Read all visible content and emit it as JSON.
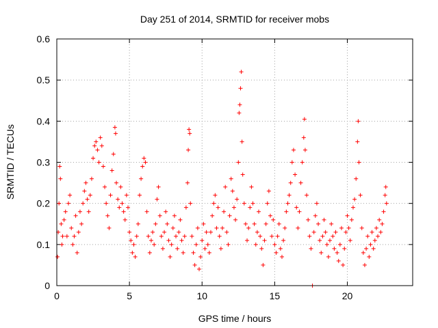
{
  "chart_data": {
    "type": "scatter",
    "title": "Day 251 of 2014, SRMTID for receiver mobs",
    "xlabel": "GPS time / hours",
    "ylabel": "SRMTID / TECUs",
    "xlim": [
      0,
      24.5
    ],
    "ylim": [
      0,
      0.6
    ],
    "xticks": [
      0,
      5,
      10,
      15,
      20
    ],
    "yticks": [
      0,
      0.1,
      0.2,
      0.3,
      0.4,
      0.5,
      0.6
    ],
    "grid": true,
    "marker": "+",
    "color": "#ff0000",
    "series": [
      {
        "name": "mobs",
        "points": [
          [
            0.05,
            0.07
          ],
          [
            0.1,
            0.13
          ],
          [
            0.15,
            0.2
          ],
          [
            0.2,
            0.29
          ],
          [
            0.25,
            0.26
          ],
          [
            0.3,
            0.15
          ],
          [
            0.35,
            0.1
          ],
          [
            0.4,
            0.12
          ],
          [
            0.5,
            0.16
          ],
          [
            0.6,
            0.18
          ],
          [
            0.7,
            0.12
          ],
          [
            0.8,
            0.2
          ],
          [
            0.9,
            0.22
          ],
          [
            1.0,
            0.14
          ],
          [
            1.1,
            0.1
          ],
          [
            1.2,
            0.12
          ],
          [
            1.3,
            0.17
          ],
          [
            1.4,
            0.08
          ],
          [
            1.5,
            0.13
          ],
          [
            1.6,
            0.18
          ],
          [
            1.7,
            0.15
          ],
          [
            1.8,
            0.2
          ],
          [
            1.9,
            0.23
          ],
          [
            2.0,
            0.25
          ],
          [
            2.1,
            0.21
          ],
          [
            2.2,
            0.18
          ],
          [
            2.3,
            0.22
          ],
          [
            2.4,
            0.26
          ],
          [
            2.5,
            0.31
          ],
          [
            2.6,
            0.34
          ],
          [
            2.7,
            0.35
          ],
          [
            2.8,
            0.33
          ],
          [
            2.9,
            0.3
          ],
          [
            3.0,
            0.36
          ],
          [
            3.1,
            0.34
          ],
          [
            3.2,
            0.29
          ],
          [
            3.3,
            0.24
          ],
          [
            3.4,
            0.2
          ],
          [
            3.5,
            0.17
          ],
          [
            3.6,
            0.14
          ],
          [
            3.7,
            0.22
          ],
          [
            3.8,
            0.28
          ],
          [
            3.9,
            0.32
          ],
          [
            4.0,
            0.385
          ],
          [
            4.05,
            0.37
          ],
          [
            4.1,
            0.25
          ],
          [
            4.2,
            0.21
          ],
          [
            4.3,
            0.19
          ],
          [
            4.4,
            0.24
          ],
          [
            4.5,
            0.2
          ],
          [
            4.6,
            0.18
          ],
          [
            4.7,
            0.16
          ],
          [
            4.8,
            0.22
          ],
          [
            4.9,
            0.19
          ],
          [
            5.0,
            0.13
          ],
          [
            5.1,
            0.11
          ],
          [
            5.2,
            0.08
          ],
          [
            5.3,
            0.1
          ],
          [
            5.4,
            0.07
          ],
          [
            5.5,
            0.12
          ],
          [
            5.6,
            0.15
          ],
          [
            5.7,
            0.22
          ],
          [
            5.8,
            0.26
          ],
          [
            5.9,
            0.29
          ],
          [
            6.0,
            0.31
          ],
          [
            6.1,
            0.3
          ],
          [
            6.2,
            0.18
          ],
          [
            6.3,
            0.12
          ],
          [
            6.4,
            0.08
          ],
          [
            6.5,
            0.11
          ],
          [
            6.6,
            0.13
          ],
          [
            6.7,
            0.1
          ],
          [
            6.8,
            0.15
          ],
          [
            6.9,
            0.21
          ],
          [
            7.0,
            0.24
          ],
          [
            7.1,
            0.17
          ],
          [
            7.2,
            0.12
          ],
          [
            7.3,
            0.09
          ],
          [
            7.4,
            0.13
          ],
          [
            7.5,
            0.18
          ],
          [
            7.6,
            0.15
          ],
          [
            7.7,
            0.11
          ],
          [
            7.8,
            0.07
          ],
          [
            7.9,
            0.1
          ],
          [
            8.0,
            0.14
          ],
          [
            8.1,
            0.17
          ],
          [
            8.2,
            0.12
          ],
          [
            8.3,
            0.09
          ],
          [
            8.4,
            0.13
          ],
          [
            8.5,
            0.16
          ],
          [
            8.6,
            0.11
          ],
          [
            8.7,
            0.08
          ],
          [
            8.8,
            0.12
          ],
          [
            8.9,
            0.19
          ],
          [
            9.0,
            0.25
          ],
          [
            9.05,
            0.33
          ],
          [
            9.1,
            0.38
          ],
          [
            9.15,
            0.37
          ],
          [
            9.2,
            0.2
          ],
          [
            9.3,
            0.12
          ],
          [
            9.4,
            0.08
          ],
          [
            9.5,
            0.05
          ],
          [
            9.6,
            0.1
          ],
          [
            9.7,
            0.14
          ],
          [
            9.8,
            0.04
          ],
          [
            9.9,
            0.07
          ],
          [
            10.0,
            0.11
          ],
          [
            10.1,
            0.15
          ],
          [
            10.2,
            0.09
          ],
          [
            10.3,
            0.13
          ],
          [
            10.4,
            0.1
          ],
          [
            10.5,
            0.08
          ],
          [
            10.6,
            0.13
          ],
          [
            10.7,
            0.17
          ],
          [
            10.8,
            0.2
          ],
          [
            10.9,
            0.22
          ],
          [
            11.0,
            0.14
          ],
          [
            11.1,
            0.19
          ],
          [
            11.2,
            0.12
          ],
          [
            11.3,
            0.09
          ],
          [
            11.4,
            0.14
          ],
          [
            11.5,
            0.18
          ],
          [
            11.6,
            0.24
          ],
          [
            11.7,
            0.13
          ],
          [
            11.8,
            0.1
          ],
          [
            11.9,
            0.17
          ],
          [
            12.0,
            0.26
          ],
          [
            12.1,
            0.23
          ],
          [
            12.2,
            0.19
          ],
          [
            12.3,
            0.16
          ],
          [
            12.4,
            0.21
          ],
          [
            12.5,
            0.3
          ],
          [
            12.55,
            0.42
          ],
          [
            12.6,
            0.44
          ],
          [
            12.65,
            0.48
          ],
          [
            12.7,
            0.52
          ],
          [
            12.75,
            0.35
          ],
          [
            12.8,
            0.27
          ],
          [
            12.9,
            0.2
          ],
          [
            13.0,
            0.15
          ],
          [
            13.1,
            0.11
          ],
          [
            13.2,
            0.14
          ],
          [
            13.3,
            0.19
          ],
          [
            13.4,
            0.24
          ],
          [
            13.5,
            0.2
          ],
          [
            13.6,
            0.15
          ],
          [
            13.7,
            0.1
          ],
          [
            13.8,
            0.13
          ],
          [
            13.9,
            0.18
          ],
          [
            14.0,
            0.12
          ],
          [
            14.1,
            0.09
          ],
          [
            14.2,
            0.05
          ],
          [
            14.3,
            0.11
          ],
          [
            14.4,
            0.15
          ],
          [
            14.5,
            0.2
          ],
          [
            14.6,
            0.23
          ],
          [
            14.7,
            0.17
          ],
          [
            14.8,
            0.12
          ],
          [
            14.9,
            0.16
          ],
          [
            15.0,
            0.1
          ],
          [
            15.1,
            0.08
          ],
          [
            15.2,
            0.12
          ],
          [
            15.3,
            0.15
          ],
          [
            15.4,
            0.09
          ],
          [
            15.5,
            0.07
          ],
          [
            15.6,
            0.11
          ],
          [
            15.7,
            0.14
          ],
          [
            15.8,
            0.18
          ],
          [
            15.9,
            0.2
          ],
          [
            16.0,
            0.22
          ],
          [
            16.1,
            0.25
          ],
          [
            16.2,
            0.3
          ],
          [
            16.3,
            0.33
          ],
          [
            16.4,
            0.27
          ],
          [
            16.5,
            0.19
          ],
          [
            16.6,
            0.14
          ],
          [
            16.7,
            0.18
          ],
          [
            16.8,
            0.25
          ],
          [
            16.9,
            0.3
          ],
          [
            17.0,
            0.36
          ],
          [
            17.05,
            0.405
          ],
          [
            17.1,
            0.33
          ],
          [
            17.2,
            0.22
          ],
          [
            17.3,
            0.16
          ],
          [
            17.4,
            0.12
          ],
          [
            17.5,
            0.09
          ],
          [
            17.6,
            0.0
          ],
          [
            17.7,
            0.13
          ],
          [
            17.8,
            0.17
          ],
          [
            17.9,
            0.2
          ],
          [
            18.0,
            0.15
          ],
          [
            18.1,
            0.11
          ],
          [
            18.2,
            0.08
          ],
          [
            18.3,
            0.12
          ],
          [
            18.4,
            0.16
          ],
          [
            18.5,
            0.13
          ],
          [
            18.6,
            0.1
          ],
          [
            18.7,
            0.07
          ],
          [
            18.8,
            0.11
          ],
          [
            18.9,
            0.15
          ],
          [
            19.0,
            0.12
          ],
          [
            19.1,
            0.09
          ],
          [
            19.2,
            0.13
          ],
          [
            19.3,
            0.08
          ],
          [
            19.4,
            0.06
          ],
          [
            19.5,
            0.1
          ],
          [
            19.6,
            0.14
          ],
          [
            19.7,
            0.05
          ],
          [
            19.8,
            0.09
          ],
          [
            19.9,
            0.13
          ],
          [
            20.0,
            0.17
          ],
          [
            20.1,
            0.14
          ],
          [
            20.2,
            0.11
          ],
          [
            20.3,
            0.16
          ],
          [
            20.4,
            0.19
          ],
          [
            20.5,
            0.21
          ],
          [
            20.6,
            0.26
          ],
          [
            20.7,
            0.35
          ],
          [
            20.75,
            0.4
          ],
          [
            20.8,
            0.3
          ],
          [
            20.9,
            0.22
          ],
          [
            21.0,
            0.14
          ],
          [
            21.1,
            0.08
          ],
          [
            21.2,
            0.05
          ],
          [
            21.3,
            0.09
          ],
          [
            21.4,
            0.12
          ],
          [
            21.5,
            0.07
          ],
          [
            21.6,
            0.1
          ],
          [
            21.7,
            0.13
          ],
          [
            21.8,
            0.09
          ],
          [
            21.9,
            0.11
          ],
          [
            22.0,
            0.14
          ],
          [
            22.1,
            0.12
          ],
          [
            22.2,
            0.16
          ],
          [
            22.3,
            0.13
          ],
          [
            22.4,
            0.15
          ],
          [
            22.5,
            0.18
          ],
          [
            22.6,
            0.22
          ],
          [
            22.65,
            0.24
          ],
          [
            22.7,
            0.2
          ]
        ]
      }
    ]
  }
}
